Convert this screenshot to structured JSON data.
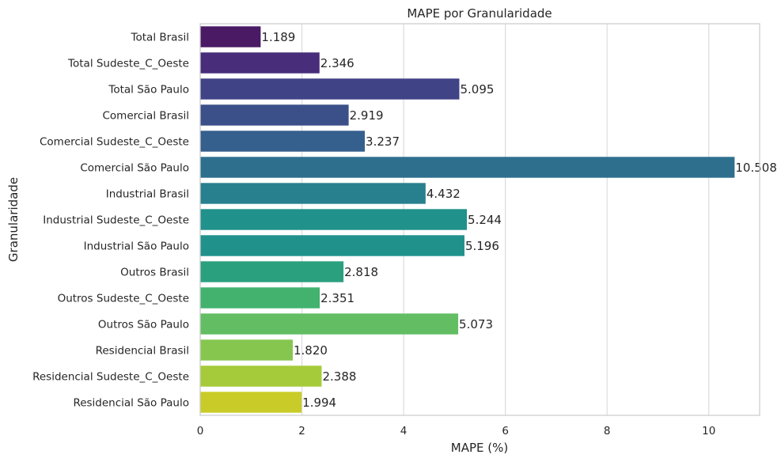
{
  "chart_data": {
    "type": "bar",
    "orientation": "horizontal",
    "title": "MAPE por Granularidade",
    "xlabel": "MAPE (%)",
    "ylabel": "Granularidade",
    "xlim": [
      0,
      11
    ],
    "xticks": [
      "0",
      "2",
      "4",
      "6",
      "8",
      "10"
    ],
    "grid": "vertical",
    "categories": [
      "Total Brasil",
      "Total Sudeste_C_Oeste",
      "Total São Paulo",
      "Comercial Brasil",
      "Comercial Sudeste_C_Oeste",
      "Comercial São Paulo",
      "Industrial Brasil",
      "Industrial Sudeste_C_Oeste",
      "Industrial São Paulo",
      "Outros Brasil",
      "Outros Sudeste_C_Oeste",
      "Outros São Paulo",
      "Residencial Brasil",
      "Residencial Sudeste_C_Oeste",
      "Residencial São Paulo"
    ],
    "values": [
      1.189,
      2.346,
      5.095,
      2.919,
      3.237,
      10.508,
      4.432,
      5.244,
      5.196,
      2.818,
      2.351,
      5.073,
      1.82,
      2.388,
      1.994
    ],
    "value_labels": [
      "1.189",
      "2.346",
      "5.095",
      "2.919",
      "3.237",
      "10.508",
      "4.432",
      "5.244",
      "5.196",
      "2.818",
      "2.351",
      "5.073",
      "1.820",
      "2.388",
      "1.994"
    ],
    "colors": [
      "#4a1a65",
      "#482d7a",
      "#414387",
      "#3b5089",
      "#355f8d",
      "#2e6f8e",
      "#28808e",
      "#21918c",
      "#21918c",
      "#2ba07f",
      "#43b26f",
      "#63bd63",
      "#86c64f",
      "#a6cb3a",
      "#c9cc28"
    ]
  }
}
